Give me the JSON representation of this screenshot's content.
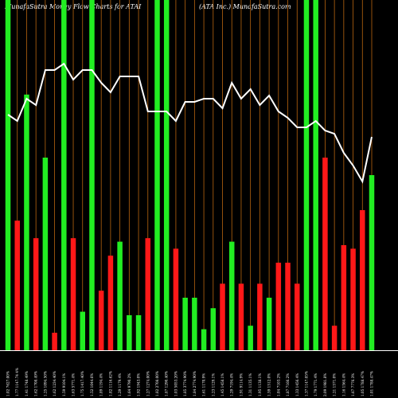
{
  "chart_data": {
    "type": "bar",
    "title_left": "MunafaSutra  Money Flow  Charts for ATAI",
    "title_right": "(ATA Inc.) MunafaSutra.com",
    "ylim": [
      0,
      100
    ],
    "grid": "vertical",
    "colors": {
      "background": "#000000",
      "grid": "#b8650f",
      "inflow": "#22ee22",
      "outflow": "#ff1818",
      "line": "#ffffff",
      "axis": "#ffffff"
    },
    "bar_values": [
      100,
      37,
      73,
      32,
      55,
      5,
      100,
      32,
      11,
      100,
      17,
      27,
      31,
      10,
      10,
      32,
      100,
      100,
      29,
      15,
      15,
      6,
      12,
      19,
      31,
      19,
      7,
      19,
      15,
      25,
      25,
      19,
      100,
      100,
      55,
      7,
      30,
      29,
      40,
      50
    ],
    "bar_flows": [
      "in",
      "out",
      "in",
      "out",
      "in",
      "out",
      "in",
      "out",
      "in",
      "in",
      "out",
      "out",
      "in",
      "in",
      "in",
      "out",
      "in",
      "in",
      "out",
      "in",
      "in",
      "in",
      "in",
      "out",
      "in",
      "out",
      "in",
      "out",
      "in",
      "out",
      "out",
      "out",
      "in",
      "in",
      "out",
      "out",
      "out",
      "out",
      "out",
      "in"
    ],
    "line_values": [
      74,
      72,
      79,
      77,
      88,
      88,
      90,
      85,
      88,
      88,
      84,
      81,
      86,
      86,
      86,
      75,
      75,
      75,
      72,
      78,
      78,
      79,
      79,
      76,
      84,
      79,
      82,
      77,
      80,
      75,
      73,
      70,
      70,
      72,
      69,
      68,
      62,
      58,
      53,
      67
    ],
    "x_labels": [
      "1.02 7627.00%",
      "1.77 1147.74 4%",
      "1.41 1748.49%",
      "1.62 1708.49%",
      "1.25 1094.50%",
      "1.62 1234.40%",
      "1.59 9104.1%",
      "1.63 5771.4%",
      "1.75 1417.40%",
      "1.52 1044.6%",
      "1.89 1194.4%",
      "1.82 1116.62%",
      "1.29 1179.4%",
      "1.64 9790.2%",
      "1.92 1943.0%",
      "1.27 1274.00%",
      "1.82 2708.00%",
      "1.87 1290.40%",
      "1.03 5053.20%",
      "1.85 3774.90%",
      "1.84 2774.90%",
      "1.61 1170.9%",
      "1.23 1129.1%",
      "1.45 1458.1%",
      "1.29 7194.4%",
      "1.91 9114.9%",
      "1.31 1135.1%",
      "1.95 1138.1%",
      "1.59 1512.0%",
      "1.04 7103.2%",
      "1.87 7166.2%",
      "1.33 1456.4%",
      "1.37 1147.05%",
      "1.79 1771.4%",
      "2.09 1981.8%",
      "1.21 1571.0%",
      "1.16 1564.4%",
      "1.67 7776.3%",
      "1.05 1788.47%",
      "1.01 1788.47%"
    ]
  }
}
